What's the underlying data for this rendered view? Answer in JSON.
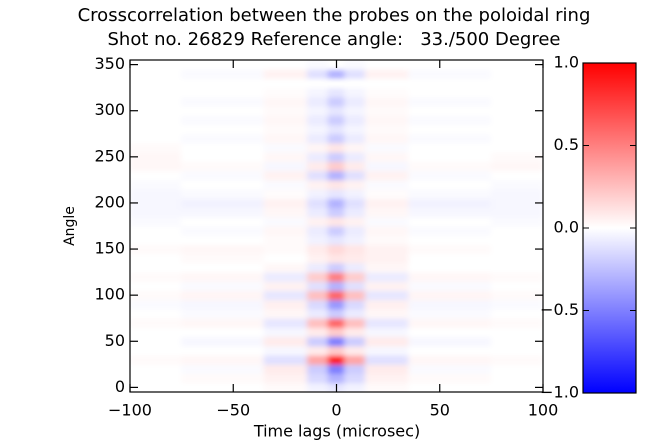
{
  "chart_data": {
    "type": "heatmap",
    "title": "Crosscorrelation between the probes on the poloidal ring",
    "subtitle": "Shot no. 26829 Reference angle:   33./500 Degree",
    "x_label": "Time lags (microsec)",
    "y_label": "Angle",
    "xlim": [
      -100,
      100
    ],
    "ylim": [
      -5,
      355
    ],
    "xticks": [
      {
        "value": -100,
        "label": "−100"
      },
      {
        "value": -50,
        "label": "−50"
      },
      0,
      50,
      100
    ],
    "yticks": [
      0,
      50,
      100,
      150,
      200,
      250,
      300,
      350
    ],
    "zlim": [
      -1,
      1
    ],
    "zticks": [
      {
        "value": -1,
        "label": "−1.0"
      },
      {
        "value": -0.5,
        "label": "−0.5"
      },
      {
        "value": 0,
        "label": "0.0"
      },
      {
        "value": 0.5,
        "label": "0.5"
      },
      {
        "value": 1,
        "label": "1.0"
      }
    ],
    "colors": {
      "low": "#0000ff",
      "mid": "#ffffff",
      "high": "#ff0000"
    },
    "x": [
      -100,
      -50,
      -20,
      -8,
      0,
      8,
      20,
      50,
      100
    ],
    "y": [
      0,
      10,
      20,
      30,
      40,
      50,
      60,
      70,
      80,
      90,
      100,
      110,
      120,
      130,
      140,
      150,
      160,
      170,
      180,
      190,
      200,
      210,
      220,
      230,
      240,
      250,
      260,
      270,
      280,
      290,
      300,
      310,
      320,
      330,
      340,
      350
    ],
    "z": [
      [
        0,
        0,
        0.02,
        -0.05,
        -0.1,
        -0.05,
        0.02,
        0,
        0
      ],
      [
        0,
        0.02,
        0.05,
        -0.15,
        -0.3,
        -0.15,
        0.05,
        0.02,
        0
      ],
      [
        0,
        -0.02,
        0.08,
        -0.2,
        -0.5,
        -0.2,
        0.08,
        -0.02,
        0
      ],
      [
        0.02,
        0.03,
        -0.12,
        0.35,
        0.9,
        0.35,
        -0.12,
        0.03,
        0.02
      ],
      [
        0,
        0,
        -0.03,
        0.08,
        0.2,
        0.08,
        -0.03,
        0,
        0
      ],
      [
        0,
        -0.03,
        0.08,
        -0.2,
        -0.5,
        -0.2,
        0.08,
        -0.03,
        0
      ],
      [
        0,
        0,
        -0.03,
        0.08,
        0.2,
        0.08,
        -0.03,
        0,
        0
      ],
      [
        0.02,
        0.03,
        -0.1,
        0.25,
        0.6,
        0.25,
        -0.1,
        0.03,
        0.02
      ],
      [
        0,
        -0.02,
        0.03,
        -0.08,
        -0.2,
        -0.08,
        0.03,
        -0.02,
        0
      ],
      [
        -0.02,
        -0.03,
        0.06,
        -0.15,
        -0.4,
        -0.15,
        0.06,
        -0.03,
        -0.02
      ],
      [
        0.02,
        0.04,
        -0.1,
        0.25,
        0.6,
        0.25,
        -0.1,
        0.04,
        0.02
      ],
      [
        0,
        -0.02,
        0.05,
        -0.12,
        -0.3,
        -0.12,
        0.05,
        -0.02,
        0
      ],
      [
        0.02,
        0.03,
        -0.08,
        0.2,
        0.5,
        0.2,
        -0.08,
        0.03,
        0.02
      ],
      [
        0,
        0,
        0.03,
        -0.08,
        -0.2,
        -0.08,
        0.03,
        0,
        0
      ],
      [
        0,
        0.02,
        0,
        0.05,
        0.1,
        0.08,
        0.05,
        0,
        0
      ],
      [
        0.02,
        0.03,
        0.02,
        0.08,
        0.15,
        0.1,
        0.05,
        0.02,
        0
      ],
      [
        0,
        0,
        0.02,
        -0.05,
        -0.1,
        -0.05,
        0.02,
        0,
        0
      ],
      [
        0,
        -0.02,
        0.03,
        -0.08,
        -0.2,
        -0.08,
        0.03,
        -0.02,
        0
      ],
      [
        -0.02,
        0,
        -0.02,
        0.05,
        0.1,
        0.05,
        -0.02,
        0,
        -0.02
      ],
      [
        -0.03,
        -0.03,
        0.03,
        -0.08,
        -0.2,
        -0.08,
        0.03,
        -0.03,
        -0.03
      ],
      [
        -0.03,
        -0.05,
        0.05,
        -0.12,
        -0.3,
        -0.12,
        0.05,
        -0.05,
        -0.03
      ],
      [
        -0.03,
        -0.02,
        0.01,
        -0.05,
        -0.1,
        -0.05,
        0.01,
        -0.02,
        -0.03
      ],
      [
        -0.02,
        0,
        -0.02,
        0.05,
        0.1,
        0.05,
        -0.02,
        0,
        -0.02
      ],
      [
        0,
        -0.02,
        0.05,
        -0.12,
        -0.3,
        -0.12,
        0.05,
        -0.02,
        0
      ],
      [
        0.03,
        0.02,
        -0.03,
        0.08,
        0.2,
        0.08,
        -0.03,
        0.02,
        0.03
      ],
      [
        0.03,
        0,
        0.03,
        -0.08,
        -0.2,
        -0.08,
        0.03,
        0,
        0.02
      ],
      [
        0.02,
        0,
        -0.02,
        0.04,
        0.1,
        0.04,
        -0.02,
        0,
        0
      ],
      [
        0,
        -0.02,
        0.03,
        -0.08,
        -0.2,
        -0.08,
        0.03,
        -0.02,
        0
      ],
      [
        0,
        0,
        0.02,
        -0.04,
        -0.1,
        -0.04,
        0.02,
        0,
        0
      ],
      [
        0,
        -0.02,
        0.03,
        -0.08,
        -0.2,
        -0.08,
        0.03,
        -0.02,
        0
      ],
      [
        0,
        0,
        0.02,
        -0.04,
        -0.1,
        -0.04,
        0.02,
        0,
        0
      ],
      [
        0,
        -0.02,
        0.03,
        -0.08,
        -0.2,
        -0.08,
        0.03,
        -0.02,
        0
      ],
      [
        0,
        0,
        0.01,
        -0.04,
        -0.1,
        -0.04,
        0.01,
        0,
        0
      ],
      [
        0,
        0,
        0,
        0,
        0,
        0,
        0,
        0,
        0
      ],
      [
        0,
        -0.02,
        0.05,
        -0.12,
        -0.3,
        -0.12,
        0.05,
        -0.02,
        0
      ],
      [
        0,
        0,
        0,
        -0.02,
        0,
        -0.02,
        0,
        0,
        0
      ]
    ]
  }
}
